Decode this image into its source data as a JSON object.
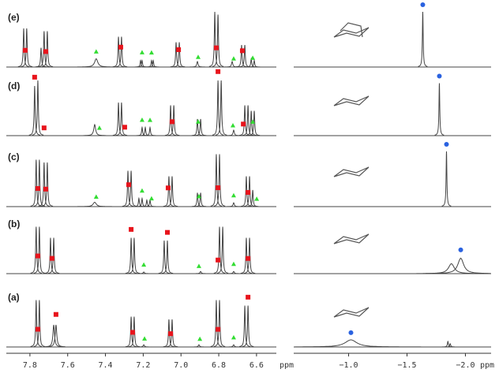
{
  "panel_labels": [
    "(e)",
    "(d)",
    "(c)",
    "(b)",
    "(a)"
  ],
  "chart_data": [
    {
      "type": "spectrum",
      "x_label": "ppm",
      "xlim": [
        7.925,
        6.495
      ],
      "xticks": [
        7.8,
        7.6,
        7.4,
        7.2,
        {
          "value": 7,
          "label": "7.0"
        },
        6.8,
        6.6
      ],
      "line_color": "#444444",
      "marker_colors": {
        "squares": "#e8141c",
        "triangles": "#33dd33"
      },
      "rows": [
        {
          "peaks": [
            [
              7.833,
              0.7,
              0.003
            ],
            [
              7.817,
              0.7,
              0.003
            ],
            [
              7.741,
              0.35,
              0.003
            ],
            [
              7.725,
              0.65,
              0.003
            ],
            [
              7.708,
              0.65,
              0.003
            ],
            [
              7.449,
              0.15,
              0.01
            ],
            [
              7.331,
              0.55,
              0.003
            ],
            [
              7.315,
              0.55,
              0.003
            ],
            [
              7.214,
              0.12,
              0.003
            ],
            [
              7.206,
              0.12,
              0.003
            ],
            [
              7.156,
              0.12,
              0.003
            ],
            [
              7.147,
              0.12,
              0.003
            ],
            [
              7.026,
              0.45,
              0.003
            ],
            [
              7.009,
              0.45,
              0.003
            ],
            [
              6.913,
              0.1,
              0.004
            ],
            [
              6.821,
              1.0,
              0.003
            ],
            [
              6.804,
              0.95,
              0.003
            ],
            [
              6.729,
              0.1,
              0.004
            ],
            [
              6.679,
              0.4,
              0.003
            ],
            [
              6.662,
              0.4,
              0.003
            ],
            [
              6.628,
              0.15,
              0.003
            ],
            [
              6.612,
              0.12,
              0.003
            ]
          ],
          "squares": [
            7.825,
            7.716,
            7.319,
            7.013,
            6.813,
            6.675
          ],
          "triangles": [
            7.449,
            7.206,
            7.156,
            6.909,
            6.721,
            6.62
          ]
        },
        {
          "peaks": [
            [
              7.775,
              0.9,
              0.003
            ],
            [
              7.758,
              1.0,
              0.003
            ],
            [
              7.457,
              0.2,
              0.006
            ],
            [
              7.331,
              0.6,
              0.003
            ],
            [
              7.315,
              0.6,
              0.003
            ],
            [
              7.206,
              0.15,
              0.003
            ],
            [
              7.189,
              0.15,
              0.003
            ],
            [
              7.164,
              0.15,
              0.003
            ],
            [
              7.055,
              0.55,
              0.003
            ],
            [
              7.038,
              0.55,
              0.003
            ],
            [
              6.913,
              0.3,
              0.003
            ],
            [
              6.896,
              0.3,
              0.003
            ],
            [
              6.804,
              1.0,
              0.003
            ],
            [
              6.787,
              1.0,
              0.003
            ],
            [
              6.721,
              0.1,
              0.004
            ],
            [
              6.662,
              0.55,
              0.003
            ],
            [
              6.645,
              0.55,
              0.003
            ],
            [
              6.628,
              0.45,
              0.003
            ],
            [
              6.612,
              0.45,
              0.003
            ]
          ],
          "squares": [
            7.775,
            7.725,
            7.298,
            7.047,
            6.804,
            6.67
          ],
          "triangles": [
            7.432,
            7.206,
            7.164,
            6.909,
            6.725,
            6.62
          ]
        },
        {
          "peaks": [
            [
              7.767,
              0.85,
              0.003
            ],
            [
              7.75,
              0.85,
              0.003
            ],
            [
              7.725,
              0.8,
              0.003
            ],
            [
              7.708,
              0.8,
              0.003
            ],
            [
              7.457,
              0.08,
              0.01
            ],
            [
              7.281,
              0.65,
              0.003
            ],
            [
              7.264,
              0.65,
              0.003
            ],
            [
              7.223,
              0.15,
              0.003
            ],
            [
              7.206,
              0.15,
              0.003
            ],
            [
              7.181,
              0.12,
              0.003
            ],
            [
              7.164,
              0.12,
              0.003
            ],
            [
              7.064,
              0.55,
              0.003
            ],
            [
              7.047,
              0.55,
              0.003
            ],
            [
              6.913,
              0.25,
              0.003
            ],
            [
              6.896,
              0.25,
              0.003
            ],
            [
              6.813,
              0.95,
              0.003
            ],
            [
              6.796,
              0.95,
              0.003
            ],
            [
              6.721,
              0.07,
              0.004
            ],
            [
              6.654,
              0.55,
              0.003
            ],
            [
              6.637,
              0.55,
              0.003
            ],
            [
              6.62,
              0.3,
              0.003
            ]
          ],
          "squares": [
            7.758,
            7.716,
            7.277,
            7.068,
            6.804,
            6.645
          ],
          "triangles": [
            7.449,
            7.206,
            7.156,
            6.905,
            6.721,
            6.599
          ]
        },
        {
          "peaks": [
            [
              7.767,
              0.85,
              0.003
            ],
            [
              7.75,
              0.85,
              0.003
            ],
            [
              7.691,
              0.65,
              0.003
            ],
            [
              7.674,
              0.65,
              0.003
            ],
            [
              7.264,
              0.65,
              0.003
            ],
            [
              7.248,
              0.65,
              0.003
            ],
            [
              7.197,
              0.03,
              0.004
            ],
            [
              7.089,
              0.6,
              0.003
            ],
            [
              7.072,
              0.6,
              0.003
            ],
            [
              6.896,
              0.04,
              0.004
            ],
            [
              6.796,
              0.85,
              0.003
            ],
            [
              6.779,
              0.85,
              0.003
            ],
            [
              6.721,
              0.04,
              0.004
            ],
            [
              6.654,
              0.65,
              0.003
            ],
            [
              6.637,
              0.65,
              0.003
            ]
          ],
          "squares": [
            7.758,
            7.683,
            7.264,
            7.072,
            6.804,
            6.645
          ],
          "triangles": [
            7.197,
            6.905,
            6.721
          ]
        },
        {
          "peaks": [
            [
              7.767,
              0.85,
              0.003
            ],
            [
              7.75,
              0.85,
              0.003
            ],
            [
              7.674,
              0.4,
              0.005
            ],
            [
              7.662,
              0.4,
              0.005
            ],
            [
              7.264,
              0.55,
              0.003
            ],
            [
              7.248,
              0.55,
              0.003
            ],
            [
              7.197,
              0.04,
              0.004
            ],
            [
              7.064,
              0.5,
              0.003
            ],
            [
              7.047,
              0.5,
              0.003
            ],
            [
              6.905,
              0.04,
              0.004
            ],
            [
              6.813,
              0.85,
              0.003
            ],
            [
              6.796,
              0.85,
              0.003
            ],
            [
              6.721,
              0.04,
              0.004
            ],
            [
              6.662,
              0.75,
              0.003
            ],
            [
              6.645,
              0.75,
              0.003
            ]
          ],
          "squares": [
            7.758,
            7.662,
            7.256,
            7.055,
            6.804,
            6.645
          ],
          "triangles": [
            7.193,
            6.9,
            6.721
          ]
        }
      ]
    },
    {
      "type": "spectrum",
      "x_label": "ppm",
      "xlim": [
        -0.53,
        -2.22
      ],
      "xticks": [
        {
          "value": -1,
          "label": "−1.0"
        },
        {
          "value": -1.5,
          "label": "−1.5"
        },
        {
          "value": -2,
          "label": "−2.0"
        }
      ],
      "line_color": "#444444",
      "marker_colors": {
        "circles": "#2a62e0"
      },
      "rows": [
        {
          "peaks": [
            [
              -1.635,
              1.0,
              0.004
            ]
          ],
          "circles": [
            -1.635
          ]
        },
        {
          "peaks": [
            [
              -1.777,
              0.95,
              0.004
            ]
          ],
          "circles": [
            -1.777
          ]
        },
        {
          "peaks": [
            [
              -1.838,
              1.0,
              0.004
            ]
          ],
          "circles": [
            -1.838
          ]
        },
        {
          "peaks": [
            [
              -1.88,
              0.18,
              0.03
            ],
            [
              -1.96,
              0.28,
              0.03
            ]
          ],
          "circles": [
            -1.96
          ]
        },
        {
          "peaks": [
            [
              -1.02,
              0.13,
              0.06
            ],
            [
              -1.85,
              0.1,
              0.005
            ],
            [
              -1.87,
              0.06,
              0.005
            ]
          ],
          "circles": [
            -1.02
          ]
        }
      ]
    }
  ]
}
